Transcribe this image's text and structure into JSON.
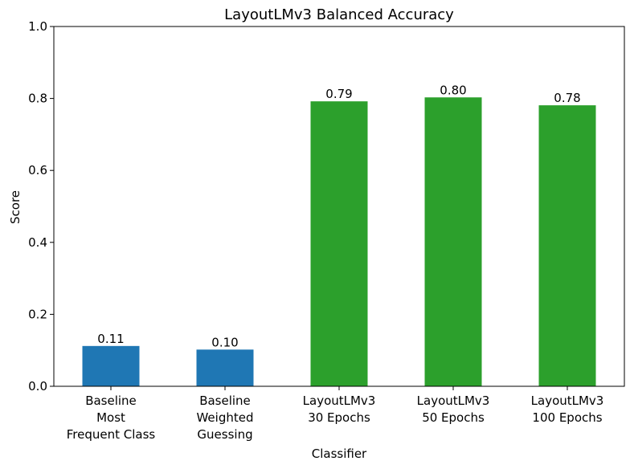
{
  "chart_data": {
    "type": "bar",
    "title": "LayoutLMv3 Balanced Accuracy",
    "xlabel": "Classifier",
    "ylabel": "Score",
    "ylim": [
      0,
      1.0
    ],
    "yticks": [
      "0.0",
      "0.2",
      "0.4",
      "0.6",
      "0.8",
      "1.0"
    ],
    "categories": [
      [
        "Baseline",
        "Most",
        "Frequent Class"
      ],
      [
        "Baseline",
        "Weighted",
        "Guessing"
      ],
      [
        "LayoutLMv3",
        "30 Epochs"
      ],
      [
        "LayoutLMv3",
        "50 Epochs"
      ],
      [
        "LayoutLMv3",
        "100 Epochs"
      ]
    ],
    "values": [
      0.112,
      0.102,
      0.792,
      0.803,
      0.781
    ],
    "value_labels": [
      "0.11",
      "0.10",
      "0.79",
      "0.80",
      "0.78"
    ],
    "colors": [
      "#1f77b4",
      "#1f77b4",
      "#2ca02c",
      "#2ca02c",
      "#2ca02c"
    ],
    "grid": false
  }
}
